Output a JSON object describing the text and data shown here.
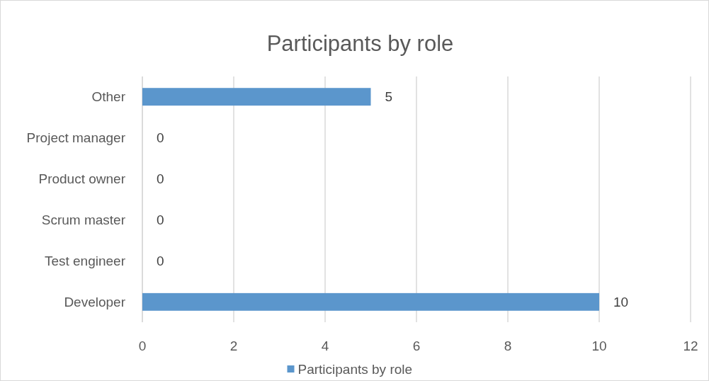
{
  "chart_data": {
    "type": "bar",
    "orientation": "horizontal",
    "title": "Participants by role",
    "categories": [
      "Other",
      "Project manager",
      "Product owner",
      "Scrum master",
      "Test engineer",
      "Developer"
    ],
    "series": [
      {
        "name": "Participants by role",
        "color": "#5b96cc",
        "values": [
          5,
          0,
          0,
          0,
          0,
          10
        ]
      }
    ],
    "xlim": [
      0,
      12
    ],
    "xticks": [
      0,
      2,
      4,
      6,
      8,
      10,
      12
    ],
    "grid": "x",
    "legend": "bottom",
    "data_labels": true
  }
}
